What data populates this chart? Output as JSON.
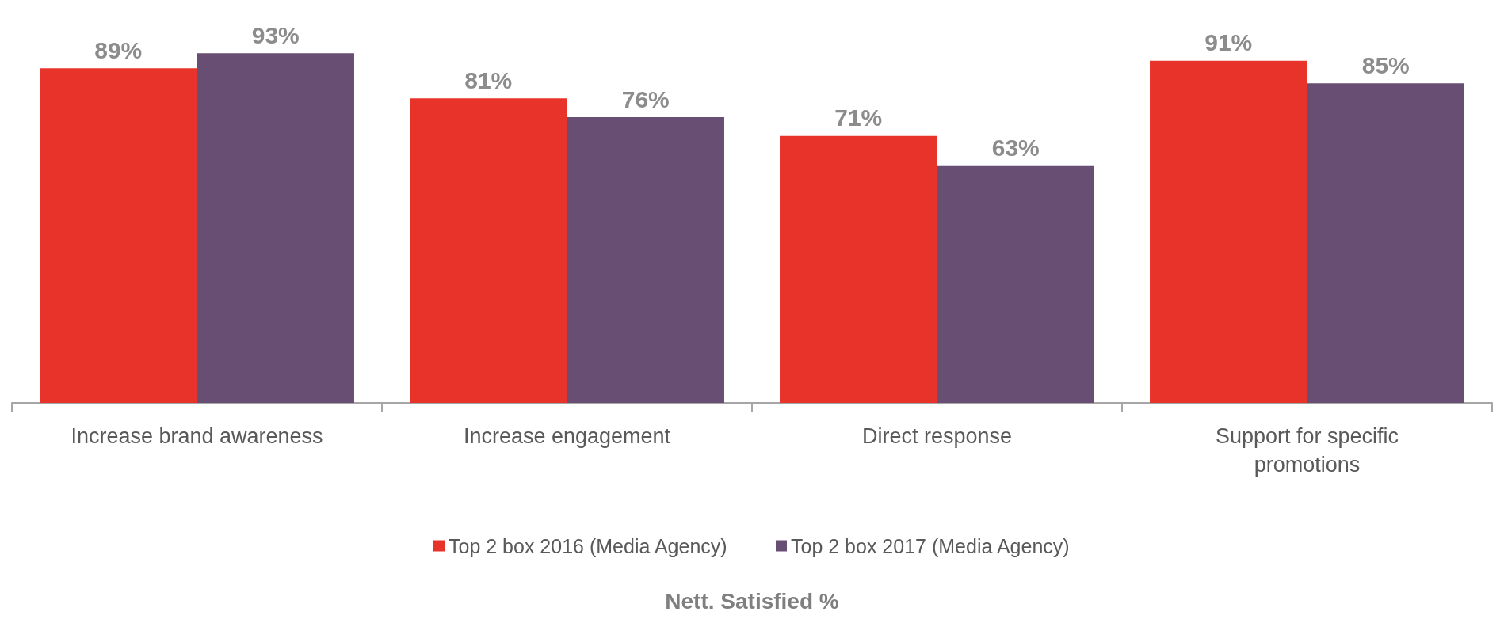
{
  "chart_data": {
    "type": "bar",
    "title": "Nett. Satisfied %",
    "categories": [
      "Increase brand awareness",
      "Increase engagement",
      "Direct response",
      "Support for specific promotions"
    ],
    "series": [
      {
        "name": "Top 2 box 2016 (Media Agency)",
        "color": "#e8332a",
        "values": [
          89,
          81,
          71,
          91
        ],
        "value_labels": [
          "89%",
          "81%",
          "71%",
          "91%"
        ]
      },
      {
        "name": "Top 2 box 2017 (Media Agency)",
        "color": "#694e74",
        "values": [
          93,
          76,
          63,
          85
        ],
        "value_labels": [
          "93%",
          "76%",
          "63%",
          "85%"
        ]
      }
    ],
    "legend": "bottom"
  }
}
